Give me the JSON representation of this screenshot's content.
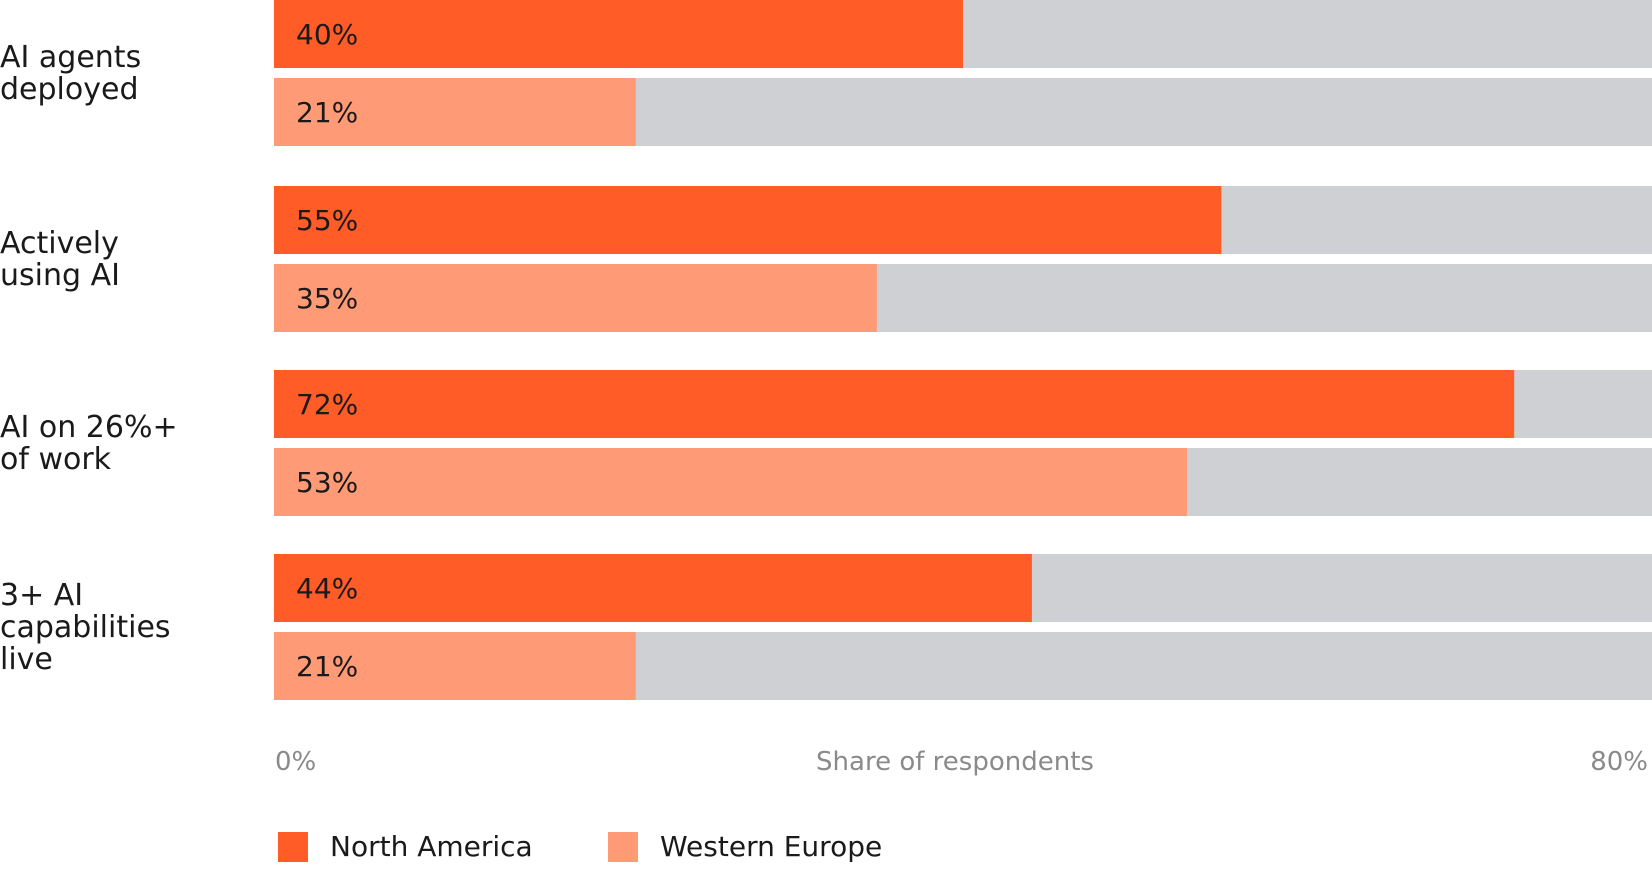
{
  "chart_data": {
    "type": "bar",
    "orientation": "horizontal",
    "categories": [
      [
        "AI agents",
        "deployed"
      ],
      [
        "Actively",
        "using AI"
      ],
      [
        "AI on 26%+",
        "of work"
      ],
      [
        "3+ AI",
        "capabilities",
        "live"
      ]
    ],
    "series": [
      {
        "name": "North America",
        "values": [
          40,
          55,
          72,
          44
        ],
        "labels": [
          "40%",
          "55%",
          "72%",
          "44%"
        ],
        "color": "#ff5c28"
      },
      {
        "name": "Western Europe",
        "values": [
          21,
          35,
          53,
          21
        ],
        "labels": [
          "21%",
          "35%",
          "53%",
          "21%"
        ],
        "color": "#ff9a76"
      }
    ],
    "xlim": [
      0,
      80
    ],
    "x_tick_labels": [
      "0%",
      "80%"
    ],
    "xlabel": "Share of respondents",
    "track_color": "#cfd0d4",
    "legend_position": "bottom-left"
  }
}
